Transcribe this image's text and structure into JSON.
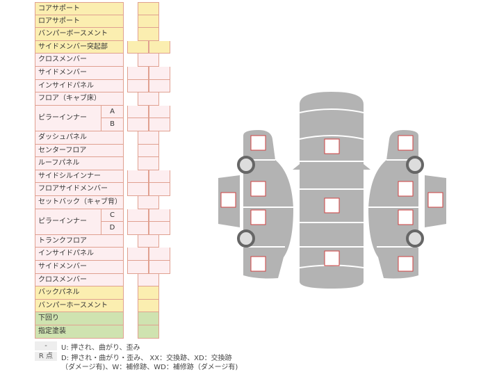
{
  "rows": [
    {
      "label": "コアサポート",
      "color": "y",
      "cells": 1
    },
    {
      "label": "ロアサポート",
      "color": "y",
      "cells": 1
    },
    {
      "label": "バンパーボースメント",
      "color": "y",
      "cells": 1
    },
    {
      "label": "サイドメンバー突起部",
      "color": "y",
      "cells": 2
    },
    {
      "label": "クロスメンバー",
      "color": "p",
      "cells": 1
    },
    {
      "label": "サイドメンバー",
      "color": "p",
      "cells": 2
    },
    {
      "label": "インサイドパネル",
      "color": "p",
      "cells": 2
    },
    {
      "label": "フロア（キャブ床）",
      "color": "p",
      "cells": 1
    },
    {
      "label": "ピラーインナー",
      "sub": "A",
      "color": "p",
      "cells": 2
    },
    {
      "label": "",
      "sub": "B",
      "color": "p",
      "cells": 2
    },
    {
      "label": "ダッシュパネル",
      "color": "p",
      "cells": 1
    },
    {
      "label": "センターフロア",
      "color": "p",
      "cells": 1
    },
    {
      "label": "ルーフパネル",
      "color": "p",
      "cells": 1
    },
    {
      "label": "サイドシルインナー",
      "color": "p",
      "cells": 2
    },
    {
      "label": "フロアサイドメンバー",
      "color": "p",
      "cells": 2
    },
    {
      "label": "セットバック（キャブ背）",
      "color": "p",
      "cells": 1
    },
    {
      "label": "ピラーインナー",
      "sub": "C",
      "color": "p",
      "cells": 2
    },
    {
      "label": "",
      "sub": "D",
      "color": "p",
      "cells": 2
    },
    {
      "label": "トランクフロア",
      "color": "p",
      "cells": 1
    },
    {
      "label": "インサイドパネル",
      "color": "p",
      "cells": 2
    },
    {
      "label": "サイドメンバー",
      "color": "p",
      "cells": 2
    },
    {
      "label": "クロスメンバー",
      "color": "p",
      "cells": 1
    },
    {
      "label": "バックパネル",
      "color": "y",
      "cells": 1
    },
    {
      "label": "バンパーホースメント",
      "color": "y",
      "cells": 1
    },
    {
      "label": "下回り",
      "color": "g",
      "cells": 1
    },
    {
      "label": "指定塗装",
      "color": "g",
      "cells": 1
    }
  ],
  "legend": {
    "tag1": "-",
    "line1": "U: 押され、曲がり、歪み",
    "tag2": "R 点",
    "line2": "D: 押され・曲がり・歪み、 XX：交換跡、XD：交換跡",
    "line3": "（ダメージ有)、W：補修跡、WD：補修跡（ダメージ有)"
  },
  "colors": {
    "body": "#b3b3b3",
    "marker": "#d04040",
    "border": "#e0a090"
  }
}
